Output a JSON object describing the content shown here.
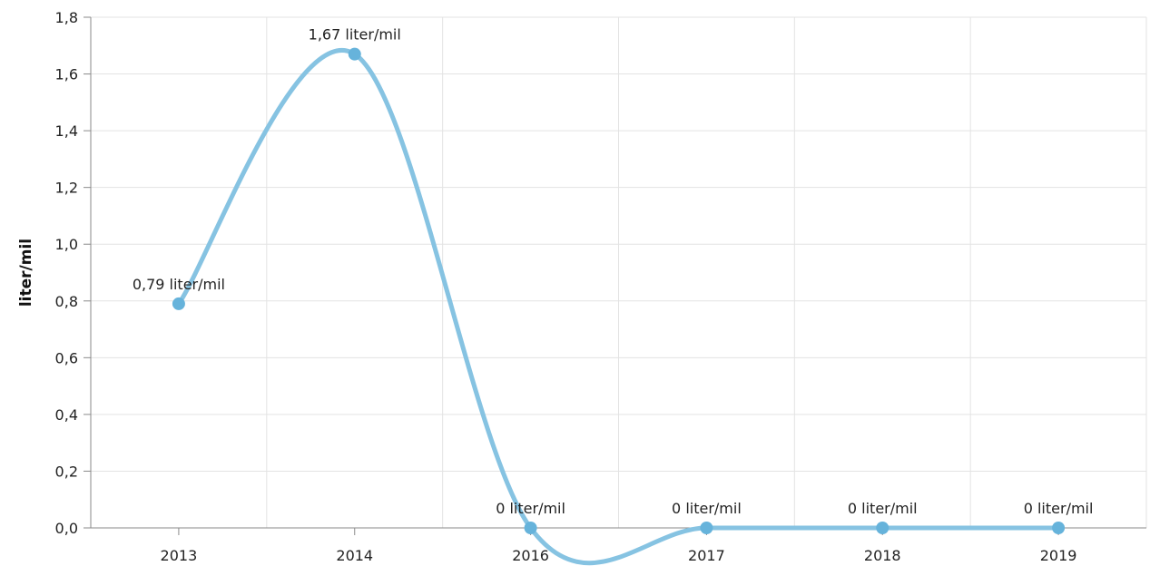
{
  "chart_data": {
    "type": "line",
    "title": "",
    "xlabel": "",
    "ylabel": "liter/mil",
    "categories": [
      "2013",
      "2014",
      "2016",
      "2017",
      "2018",
      "2019"
    ],
    "series": [
      {
        "values": [
          0.79,
          1.67,
          0,
          0,
          0,
          0
        ],
        "data_labels": [
          "0,79 liter/mil",
          "1,67 liter/mil",
          "0 liter/mil",
          "0 liter/mil",
          "0 liter/mil",
          "0 liter/mil"
        ],
        "color": "#86c3e2",
        "marker_color": "#66b3db"
      }
    ],
    "ylim": [
      0,
      1.8
    ],
    "yticks": [
      0,
      0.2,
      0.4,
      0.6,
      0.8,
      1.0,
      1.2,
      1.4,
      1.6,
      1.8
    ],
    "ytick_labels": [
      "0,0",
      "0,2",
      "0,4",
      "0,6",
      "0,8",
      "1,0",
      "1,2",
      "1,4",
      "1,6",
      "1,8"
    ],
    "grid": true,
    "legend": "none",
    "smooth": true
  }
}
